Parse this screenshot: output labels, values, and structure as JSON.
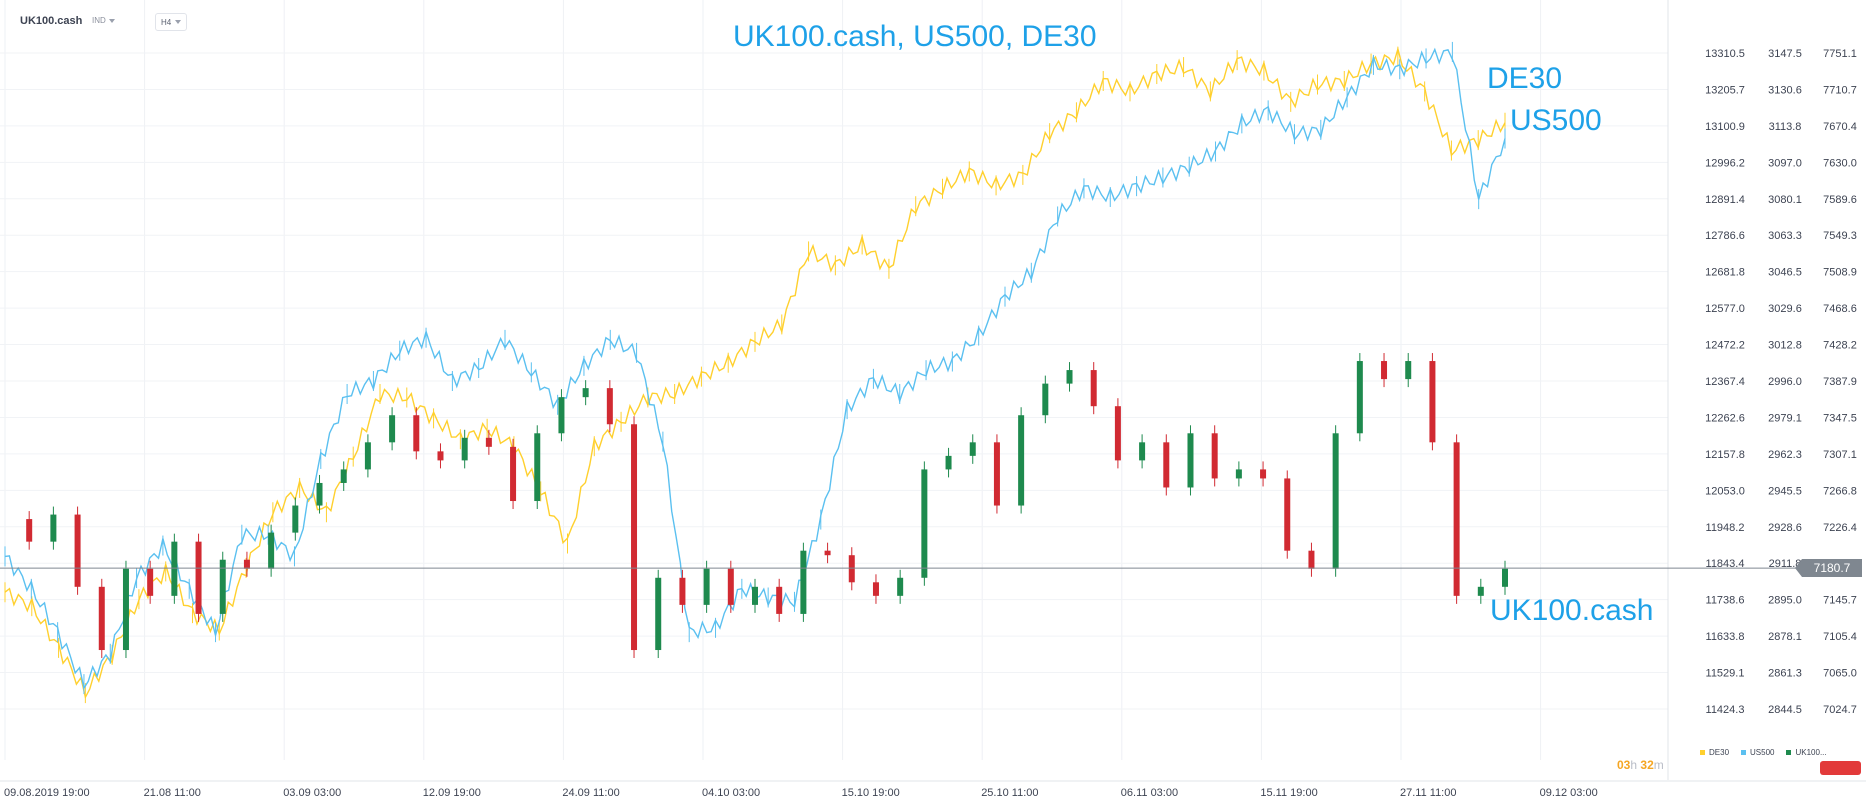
{
  "toolbar": {
    "symbol": "UK100.cash",
    "symbol_badge": "IND",
    "timeframe": "H4"
  },
  "chart_data": {
    "type": "line",
    "title": "UK100.cash, US500, DE30",
    "series_labels_on_chart": [
      "DE30",
      "US500",
      "UK100.cash"
    ],
    "x_tick_labels": [
      "09.08.2019  19:00",
      "21.08  11:00",
      "03.09  03:00",
      "12.09  19:00",
      "24.09  11:00",
      "04.10  03:00",
      "15.10  19:00",
      "25.10  11:00",
      "06.11  03:00",
      "15.11  19:00",
      "27.11  11:00",
      "09.12  03:00"
    ],
    "axes": [
      {
        "side": "right-inner",
        "series": "DE30",
        "ylim": [
          11424.3,
          13310.5
        ],
        "ticks": [
          "13310.5",
          "13205.7",
          "13100.9",
          "12996.2",
          "12891.4",
          "12786.6",
          "12681.8",
          "12577.0",
          "12472.2",
          "12367.4",
          "12262.6",
          "12157.8",
          "12053.0",
          "11948.2",
          "11843.4",
          "11738.6",
          "11633.8",
          "11529.1",
          "11424.3"
        ]
      },
      {
        "side": "right-middle",
        "series": "US500",
        "ylim": [
          2844.5,
          3147.5
        ],
        "ticks": [
          "3147.5",
          "3130.6",
          "3113.8",
          "3097.0",
          "3080.1",
          "3063.3",
          "3046.5",
          "3029.6",
          "3012.8",
          "2996.0",
          "2979.1",
          "2962.3",
          "2945.5",
          "2928.6",
          "2911.8",
          "2895.0",
          "2878.1",
          "2861.3",
          "2844.5"
        ]
      },
      {
        "side": "right-outer",
        "series": "UK100.cash",
        "ylim": [
          7024.7,
          7751.1
        ],
        "ticks": [
          "7751.1",
          "7710.7",
          "7670.4",
          "7630.0",
          "7589.6",
          "7549.3",
          "7508.9",
          "7468.6",
          "7428.2",
          "7387.9",
          "7347.5",
          "7307.1",
          "7266.8",
          "7226.4",
          "",
          "7145.7",
          "7105.4",
          "7065.0",
          "7024.7"
        ]
      }
    ],
    "current_price": "7180.7",
    "grid": true,
    "legend_position": "bottom-right",
    "series": [
      {
        "name": "DE30",
        "color": "#ffd02e",
        "values": [
          11760,
          11720,
          11600,
          11470,
          11580,
          11740,
          11820,
          11700,
          11650,
          11830,
          11990,
          12060,
          11990,
          12150,
          12330,
          12320,
          12260,
          12200,
          12230,
          12180,
          12050,
          11900,
          12180,
          12250,
          12320,
          12330,
          12380,
          12420,
          12480,
          12530,
          12740,
          12700,
          12760,
          12690,
          12870,
          12920,
          12970,
          12930,
          12960,
          13080,
          13140,
          13230,
          13200,
          13250,
          13270,
          13200,
          13290,
          13260,
          13170,
          13220,
          13230,
          13280,
          13300,
          13200,
          13030,
          13060,
          13110
        ]
      },
      {
        "name": "US500",
        "color": "#5bc0f0",
        "values": [
          2915,
          2900,
          2880,
          2856,
          2870,
          2905,
          2920,
          2900,
          2880,
          2925,
          2925,
          2915,
          2960,
          2990,
          2996,
          3010,
          3016,
          2996,
          3002,
          3015,
          3000,
          2985,
          3003,
          3015,
          3009,
          2968,
          2880,
          2882,
          2900,
          2896,
          2894,
          2932,
          2983,
          2997,
          2990,
          3001,
          3005,
          3017,
          3035,
          3046,
          3072,
          3085,
          3081,
          3086,
          3090,
          3095,
          3102,
          3115,
          3121,
          3110,
          3112,
          3127,
          3142,
          3140,
          3145,
          3148,
          3080,
          3108
        ]
      },
      {
        "name": "UK100.cash",
        "color": "#1e8a4e",
        "down_color": "#d12a32",
        "values": [
          7235,
          7210,
          7240,
          7160,
          7090,
          7180,
          7150,
          7210,
          7130,
          7190,
          7180,
          7220,
          7250,
          7275,
          7290,
          7320,
          7350,
          7310,
          7300,
          7325,
          7315,
          7255,
          7330,
          7370,
          7380,
          7340,
          7090,
          7170,
          7140,
          7180,
          7140,
          7160,
          7130,
          7200,
          7195,
          7165,
          7150,
          7170,
          7290,
          7305,
          7320,
          7250,
          7350,
          7385,
          7400,
          7360,
          7300,
          7320,
          7270,
          7330,
          7280,
          7290,
          7280,
          7200,
          7180,
          7330,
          7410,
          7390,
          7410,
          7320,
          7150,
          7160,
          7180
        ]
      }
    ]
  },
  "countdown": {
    "hours": "03",
    "h_unit": "h",
    "minutes": "32",
    "m_unit": "m"
  },
  "legend": [
    {
      "name": "DE30",
      "color": "#ffd02e"
    },
    {
      "name": "US500",
      "color": "#5bc0f0"
    },
    {
      "name": "UK100...",
      "color": "#1e8a4e"
    }
  ]
}
